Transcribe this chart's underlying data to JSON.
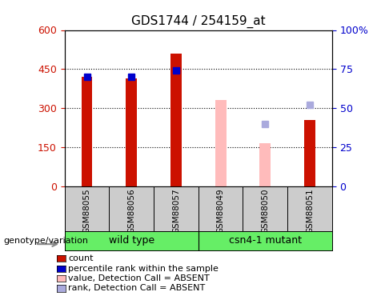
{
  "title": "GDS1744 / 254159_at",
  "samples": [
    "GSM88055",
    "GSM88056",
    "GSM88057",
    "GSM88049",
    "GSM88050",
    "GSM88051"
  ],
  "group_labels": [
    "wild type",
    "csn4-1 mutant"
  ],
  "count_values": [
    420,
    415,
    510,
    null,
    null,
    255
  ],
  "rank_values_pct": [
    70,
    70,
    74,
    null,
    null,
    null
  ],
  "count_absent": [
    null,
    null,
    null,
    330,
    165,
    null
  ],
  "rank_absent_pct": [
    null,
    null,
    null,
    null,
    40,
    52
  ],
  "ylim_left": [
    0,
    600
  ],
  "ylim_right": [
    0,
    100
  ],
  "yticks_left": [
    0,
    150,
    300,
    450,
    600
  ],
  "ytick_labels_left": [
    "0",
    "150",
    "300",
    "450",
    "600"
  ],
  "yticks_right": [
    0,
    25,
    50,
    75,
    100
  ],
  "ytick_labels_right": [
    "0",
    "25",
    "50",
    "75",
    "100%"
  ],
  "bar_width": 0.25,
  "marker_size": 6,
  "colors": {
    "count": "#cc1100",
    "rank": "#0000cc",
    "count_absent": "#ffbbbb",
    "rank_absent": "#aaaadd",
    "grid": "#000000",
    "bg_plot": "#ffffff",
    "bg_label": "#cccccc",
    "bg_group": "#66ee66",
    "title": "#000000",
    "left_axis": "#cc1100",
    "right_axis": "#0000cc"
  },
  "legend_items": [
    {
      "label": "count",
      "color": "#cc1100"
    },
    {
      "label": "percentile rank within the sample",
      "color": "#0000cc"
    },
    {
      "label": "value, Detection Call = ABSENT",
      "color": "#ffbbbb"
    },
    {
      "label": "rank, Detection Call = ABSENT",
      "color": "#aaaadd"
    }
  ]
}
